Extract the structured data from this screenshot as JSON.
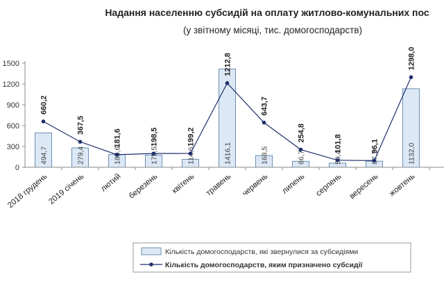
{
  "chart_data": {
    "type": "bar",
    "title": "Надання населенню субсидій на оплату житлово-комунальних пос",
    "subtitle": "(у звітному місяці, тис. домогосподарств)",
    "categories": [
      "2018 грудень",
      "2019 січень",
      "лютий",
      "березень",
      "квітень",
      "травень",
      "червень",
      "липень",
      "серпень",
      "вересень",
      "жовтень"
    ],
    "ylim": [
      0,
      1500
    ],
    "yticks": [
      "0",
      "300",
      "600",
      "900",
      "1200",
      "1500"
    ],
    "ytick_values": [
      0,
      300,
      600,
      900,
      1200,
      1500
    ],
    "grid": false,
    "legend_position": "bottom",
    "series": [
      {
        "name": "Кількість домогосподарств, які звернулися за субсидіями",
        "type": "bar",
        "color": "#dce8f5",
        "stroke": "#6b8fb5",
        "values": [
          494.7,
          279.4,
          185.6,
          175.5,
          114.6,
          1416.1,
          168.5,
          86.7,
          59.4,
          87.7,
          1132.0
        ],
        "labels": [
          "494,7",
          "279,4",
          "185,6",
          "175,5",
          "114,6",
          "1416,1",
          "168,5",
          "86,7",
          "59,4",
          "87,7",
          "1132,0"
        ]
      },
      {
        "name": "Кількість домогосподарств, яким призначено субсидії",
        "type": "line",
        "color": "#1f2f6b",
        "values": [
          660.2,
          367.5,
          181.6,
          198.5,
          199.2,
          1212.8,
          643.7,
          254.8,
          101.8,
          96.1,
          1298.0
        ],
        "labels": [
          "660,2",
          "367,5",
          "181,6",
          "198,5",
          "199,2",
          "1212,8",
          "643,7",
          "254,8",
          "101,8",
          "96,1",
          "1298,0"
        ]
      }
    ]
  }
}
